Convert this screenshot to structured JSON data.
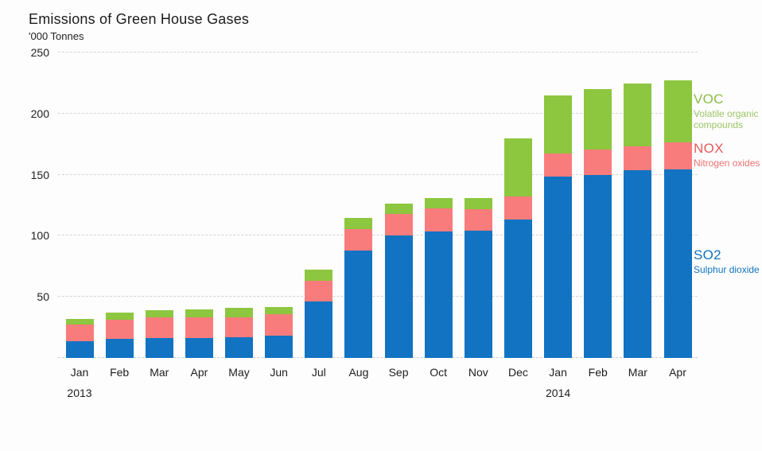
{
  "title": "Emissions of Green House Gases",
  "subtitle": "'000 Tonnes",
  "chart_data": {
    "type": "bar",
    "stacked": true,
    "title": "Emissions of Green House Gases",
    "ylabel": "'000 Tonnes",
    "ylim": [
      0,
      250
    ],
    "yticks": [
      50,
      100,
      150,
      200,
      250
    ],
    "grid": "horizontal-dashed",
    "legend_position": "right",
    "categories": [
      "Jan",
      "Feb",
      "Mar",
      "Apr",
      "May",
      "Jun",
      "Jul",
      "Aug",
      "Sep",
      "Oct",
      "Nov",
      "Dec",
      "Jan",
      "Feb",
      "Mar",
      "Apr"
    ],
    "year_markers": [
      {
        "index": 0,
        "label": "2013"
      },
      {
        "index": 12,
        "label": "2014"
      }
    ],
    "series": [
      {
        "name": "SO2",
        "full_name": "Sulphur dioxide",
        "color": "#1173c2",
        "values": [
          14,
          15.5,
          16,
          16.5,
          17,
          18,
          46,
          88,
          100,
          103.5,
          104,
          113.5,
          148.5,
          150,
          153.5,
          154
        ]
      },
      {
        "name": "NOX",
        "full_name": "Nitrogen oxides",
        "color": "#f97c7c",
        "values": [
          13.5,
          16,
          17.5,
          17,
          16.5,
          17.5,
          17,
          17.5,
          18,
          19,
          18,
          19,
          19,
          20.5,
          20,
          22.5
        ]
      },
      {
        "name": "VOC",
        "full_name": "Volatile organic compounds",
        "color": "#8dc63f",
        "values": [
          4.5,
          5.5,
          5.5,
          6.5,
          7.5,
          6.5,
          9,
          9,
          8,
          8.5,
          9,
          47.5,
          47.5,
          49.5,
          51,
          51
        ]
      }
    ]
  },
  "legend": {
    "voc_title": "VOC",
    "voc_sub": "Volatile organic compounds",
    "nox_title": "NOX",
    "nox_sub": "Nitrogen oxides",
    "so2_title": "SO2",
    "so2_sub": "Sulphur dioxide"
  }
}
